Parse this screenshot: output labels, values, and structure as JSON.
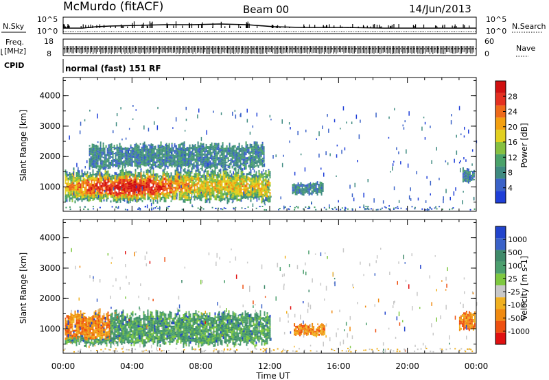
{
  "header": {
    "station": "McMurdo (fitACF)",
    "beam": "Beam 00",
    "date": "14/Jun/2013"
  },
  "status_panel": {
    "nsky_label": "N.Sky",
    "nsearch_label": "N.Search",
    "freq_label_1": "Freq.",
    "freq_label_2": "[MHz]",
    "nave_label": "Nave",
    "cpid_label": "CPID",
    "noise_ticks": [
      "10^5",
      "10^0"
    ],
    "freq_ticks": [
      "18",
      "8"
    ],
    "nave_ticks": [
      "60",
      "0"
    ],
    "cpid_text": "normal (fast) 151 RF"
  },
  "chart_data": [
    {
      "type": "heatmap",
      "title": "",
      "xlabel": "Time UT",
      "ylabel": "Slant Range [km]",
      "xlim": [
        0,
        24
      ],
      "ylim": [
        200,
        4600
      ],
      "x_ticks": [
        "00:00",
        "04:00",
        "08:00",
        "12:00",
        "16:00",
        "20:00",
        "00:00"
      ],
      "y_ticks": [
        "1000",
        "2000",
        "3000",
        "4000"
      ],
      "colorbar": {
        "label": "Power [dB]",
        "ticks": [
          "28",
          "24",
          "20",
          "16",
          "12",
          "8",
          "4"
        ],
        "colors": [
          "#1f3fd8",
          "#3a62c8",
          "#3e8a80",
          "#4aa26a",
          "#86c040",
          "#e2d020",
          "#f3a010",
          "#ee6a1a",
          "#e43020",
          "#d01010"
        ]
      },
      "echo_regions": [
        {
          "t_start": 0.1,
          "t_end": 12.0,
          "range_min": 500,
          "range_max": 1650,
          "level": "high"
        },
        {
          "t_start": 1.5,
          "t_end": 11.7,
          "range_min": 1600,
          "range_max": 2500,
          "level": "low"
        },
        {
          "t_start": 13.3,
          "t_end": 15.1,
          "range_min": 750,
          "range_max": 1200,
          "level": "low"
        },
        {
          "t_start": 23.2,
          "t_end": 23.9,
          "range_min": 1150,
          "range_max": 1650,
          "level": "low"
        }
      ]
    },
    {
      "type": "heatmap",
      "title": "",
      "xlabel": "Time UT",
      "ylabel": "Slant Range [km]",
      "xlim": [
        0,
        24
      ],
      "ylim": [
        200,
        4600
      ],
      "x_ticks": [
        "00:00",
        "04:00",
        "08:00",
        "12:00",
        "16:00",
        "20:00",
        "00:00"
      ],
      "y_ticks": [
        "1000",
        "2000",
        "3000",
        "4000"
      ],
      "colorbar": {
        "label": "Velocity [m s-1]",
        "ticks": [
          "1000",
          "500",
          "100",
          "25",
          "-25",
          "-100",
          "-500",
          "-1000"
        ],
        "colors": [
          "#2244cc",
          "#3a62c8",
          "#3f8a6a",
          "#4c9f6e",
          "#7ec840",
          "#c8c8c8",
          "#f0b020",
          "#f08a10",
          "#ee5010",
          "#e01010"
        ]
      },
      "echo_regions": [
        {
          "t_start": 0.1,
          "t_end": 12.0,
          "range_min": 450,
          "range_max": 1650,
          "level": "mixed"
        },
        {
          "t_start": 13.4,
          "t_end": 15.2,
          "range_min": 800,
          "range_max": 1200,
          "level": "negative"
        },
        {
          "t_start": 23.0,
          "t_end": 23.9,
          "range_min": 950,
          "range_max": 1600,
          "level": "negative"
        }
      ]
    }
  ]
}
